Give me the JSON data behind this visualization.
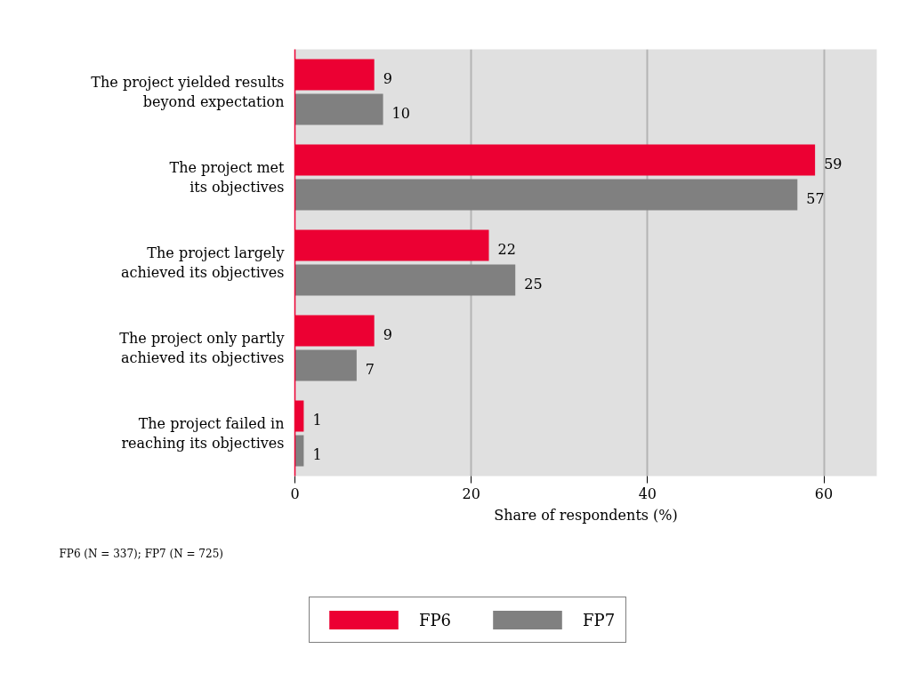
{
  "chart_data": {
    "type": "bar",
    "orientation": "horizontal",
    "categories": [
      "The project yielded results beyond expectation",
      "The project met its objectives",
      "The project largely achieved its objectives",
      "The project only partly achieved its objectives",
      "The project failed in reaching its objectives"
    ],
    "series": [
      {
        "name": "FP6",
        "color": "#ec0033",
        "values": [
          9,
          59,
          22,
          9,
          1
        ]
      },
      {
        "name": "FP7",
        "color": "#808080",
        "values": [
          10,
          57,
          25,
          7,
          1
        ]
      }
    ],
    "xlabel": "Share of respondents (%)",
    "xlim": [
      0,
      66
    ],
    "xticks": [
      0,
      20,
      40,
      60
    ],
    "grid": "x",
    "legend": "bottom",
    "data_labels": true,
    "annotations": [
      "FP6 (N = 337); FP7 (N = 725)"
    ]
  }
}
